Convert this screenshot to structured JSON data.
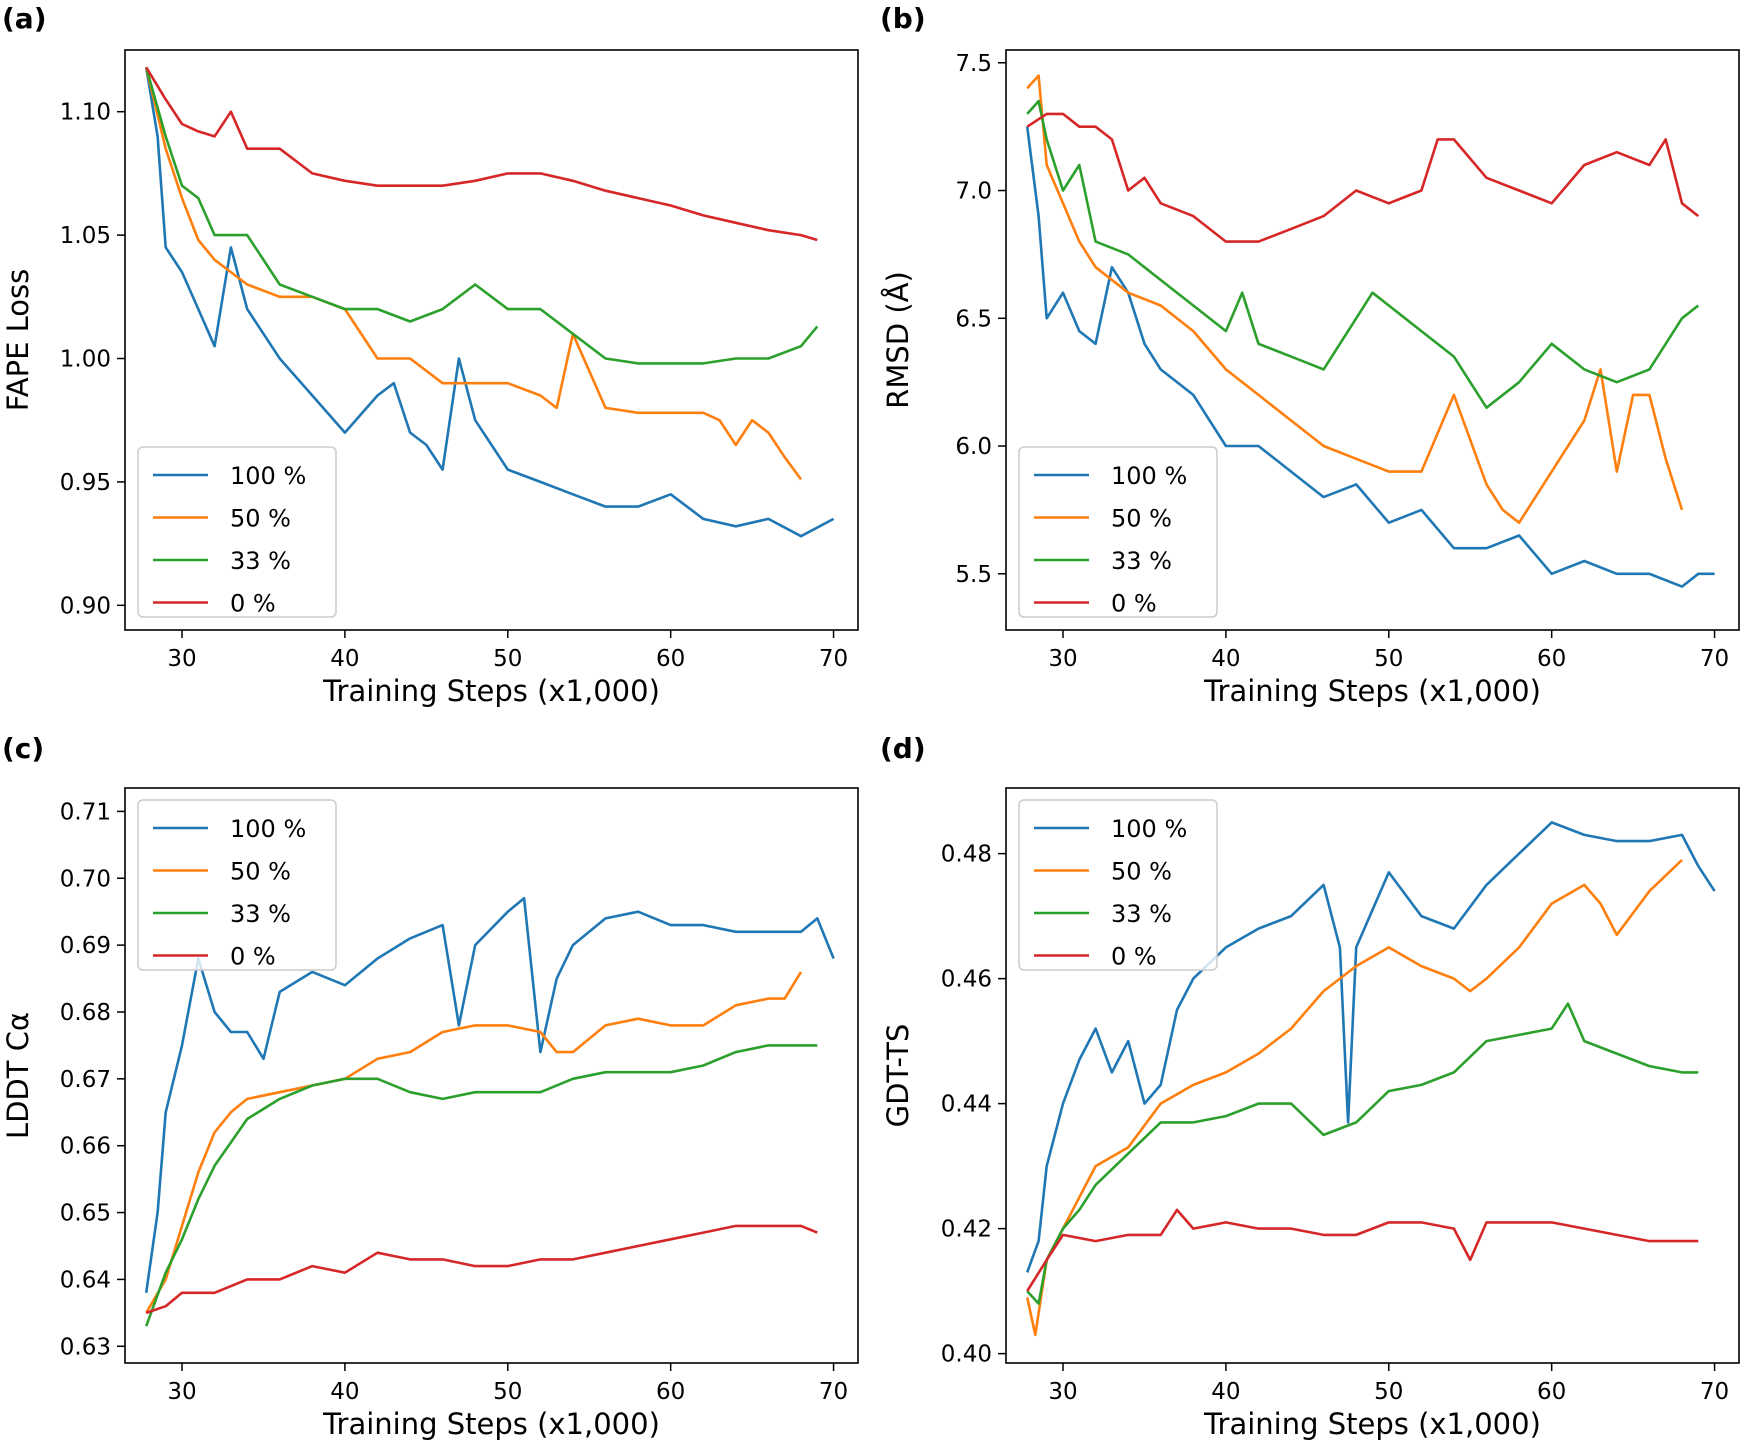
{
  "legend_series": [
    "100 %",
    "50 %",
    "33 %",
    "0 %"
  ],
  "colors": {
    "s100": "#1f77b4",
    "s50": "#ff7f0e",
    "s33": "#2ca02c",
    "s0": "#d62728"
  },
  "chart_data": [
    {
      "id": "a",
      "panel_label": "(a)",
      "type": "line",
      "xlabel": "Training Steps (x1,000)",
      "ylabel": "FAPE Loss",
      "xlim": [
        26.5,
        71.5
      ],
      "ylim": [
        0.89,
        1.125
      ],
      "xticks": [
        30,
        40,
        50,
        60,
        70
      ],
      "yticks": [
        0.9,
        0.95,
        1.0,
        1.05,
        1.1
      ],
      "ytick_labels": [
        "0.90",
        "0.95",
        "1.00",
        "1.05",
        "1.10"
      ],
      "legend": "lower-left",
      "series": [
        {
          "name": "100 %",
          "color": "#1f77b4",
          "x": [
            27.8,
            28.5,
            29,
            30,
            31,
            32,
            33,
            34,
            35,
            36,
            38,
            40,
            42,
            43,
            44,
            45,
            46,
            47,
            48,
            50,
            52,
            54,
            56,
            58,
            60,
            62,
            64,
            66,
            68,
            70
          ],
          "y": [
            1.118,
            1.09,
            1.045,
            1.035,
            1.02,
            1.005,
            1.045,
            1.02,
            1.01,
            1.0,
            0.985,
            0.97,
            0.985,
            0.99,
            0.97,
            0.965,
            0.955,
            1.0,
            0.975,
            0.955,
            0.95,
            0.945,
            0.94,
            0.94,
            0.945,
            0.935,
            0.932,
            0.935,
            0.928,
            0.935
          ]
        },
        {
          "name": "50 %",
          "color": "#ff7f0e",
          "x": [
            27.8,
            29,
            30,
            31,
            32,
            34,
            36,
            38,
            40,
            42,
            44,
            46,
            48,
            50,
            52,
            53,
            54,
            56,
            58,
            60,
            62,
            63,
            64,
            65,
            66,
            67,
            68
          ],
          "y": [
            1.118,
            1.085,
            1.065,
            1.048,
            1.04,
            1.03,
            1.025,
            1.025,
            1.02,
            1.0,
            1.0,
            0.99,
            0.99,
            0.99,
            0.985,
            0.98,
            1.01,
            0.98,
            0.978,
            0.978,
            0.978,
            0.975,
            0.965,
            0.975,
            0.97,
            0.96,
            0.951
          ]
        },
        {
          "name": "33 %",
          "color": "#2ca02c",
          "x": [
            27.8,
            29,
            30,
            31,
            32,
            34,
            36,
            38,
            40,
            42,
            44,
            46,
            48,
            50,
            52,
            54,
            56,
            58,
            60,
            62,
            64,
            66,
            68,
            69
          ],
          "y": [
            1.118,
            1.09,
            1.07,
            1.065,
            1.05,
            1.05,
            1.03,
            1.025,
            1.02,
            1.02,
            1.015,
            1.02,
            1.03,
            1.02,
            1.02,
            1.01,
            1.0,
            0.998,
            0.998,
            0.998,
            1.0,
            1.0,
            1.005,
            1.013
          ]
        },
        {
          "name": "0 %",
          "color": "#d62728",
          "x": [
            27.8,
            29,
            30,
            31,
            32,
            33,
            34,
            36,
            38,
            40,
            42,
            44,
            46,
            48,
            50,
            52,
            54,
            56,
            58,
            60,
            62,
            64,
            66,
            68,
            69
          ],
          "y": [
            1.118,
            1.105,
            1.095,
            1.092,
            1.09,
            1.1,
            1.085,
            1.085,
            1.075,
            1.072,
            1.07,
            1.07,
            1.07,
            1.072,
            1.075,
            1.075,
            1.072,
            1.068,
            1.065,
            1.062,
            1.058,
            1.055,
            1.052,
            1.05,
            1.048
          ]
        }
      ]
    },
    {
      "id": "b",
      "panel_label": "(b)",
      "type": "line",
      "xlabel": "Training Steps (x1,000)",
      "ylabel": "RMSD (Å)",
      "xlim": [
        26.5,
        71.5
      ],
      "ylim": [
        5.28,
        7.55
      ],
      "xticks": [
        30,
        40,
        50,
        60,
        70
      ],
      "yticks": [
        5.5,
        6.0,
        6.5,
        7.0,
        7.5
      ],
      "ytick_labels": [
        "5.5",
        "6.0",
        "6.5",
        "7.0",
        "7.5"
      ],
      "legend": "lower-left",
      "series": [
        {
          "name": "100 %",
          "color": "#1f77b4",
          "x": [
            27.8,
            28.5,
            29,
            30,
            31,
            32,
            33,
            34,
            35,
            36,
            38,
            40,
            42,
            44,
            46,
            48,
            50,
            52,
            54,
            56,
            58,
            60,
            62,
            64,
            66,
            68,
            69,
            70
          ],
          "y": [
            7.25,
            6.9,
            6.5,
            6.6,
            6.45,
            6.4,
            6.7,
            6.6,
            6.4,
            6.3,
            6.2,
            6.0,
            6.0,
            5.9,
            5.8,
            5.85,
            5.7,
            5.75,
            5.6,
            5.6,
            5.65,
            5.5,
            5.55,
            5.5,
            5.5,
            5.45,
            5.5,
            5.5
          ]
        },
        {
          "name": "50 %",
          "color": "#ff7f0e",
          "x": [
            27.8,
            28.5,
            29,
            30,
            31,
            32,
            34,
            36,
            38,
            40,
            42,
            44,
            46,
            48,
            50,
            52,
            54,
            56,
            57,
            58,
            60,
            62,
            63,
            64,
            65,
            66,
            67,
            68
          ],
          "y": [
            7.4,
            7.45,
            7.1,
            6.95,
            6.8,
            6.7,
            6.6,
            6.55,
            6.45,
            6.3,
            6.2,
            6.1,
            6.0,
            5.95,
            5.9,
            5.9,
            6.2,
            5.85,
            5.75,
            5.7,
            5.9,
            6.1,
            6.3,
            5.9,
            6.2,
            6.2,
            5.95,
            5.75
          ]
        },
        {
          "name": "33 %",
          "color": "#2ca02c",
          "x": [
            27.8,
            28.5,
            29,
            30,
            31,
            32,
            34,
            36,
            38,
            40,
            41,
            42,
            44,
            46,
            48,
            49,
            50,
            52,
            54,
            56,
            58,
            60,
            62,
            64,
            66,
            68,
            69
          ],
          "y": [
            7.3,
            7.35,
            7.2,
            7.0,
            7.1,
            6.8,
            6.75,
            6.65,
            6.55,
            6.45,
            6.6,
            6.4,
            6.35,
            6.3,
            6.5,
            6.6,
            6.55,
            6.45,
            6.35,
            6.15,
            6.25,
            6.4,
            6.3,
            6.25,
            6.3,
            6.5,
            6.55
          ]
        },
        {
          "name": "0 %",
          "color": "#d62728",
          "x": [
            27.8,
            29,
            30,
            31,
            32,
            33,
            34,
            35,
            36,
            38,
            40,
            42,
            44,
            46,
            48,
            50,
            52,
            53,
            54,
            56,
            58,
            60,
            62,
            64,
            66,
            67,
            68,
            69
          ],
          "y": [
            7.25,
            7.3,
            7.3,
            7.25,
            7.25,
            7.2,
            7.0,
            7.05,
            6.95,
            6.9,
            6.8,
            6.8,
            6.85,
            6.9,
            7.0,
            6.95,
            7.0,
            7.2,
            7.2,
            7.05,
            7.0,
            6.95,
            7.1,
            7.15,
            7.1,
            7.2,
            6.95,
            6.9
          ]
        }
      ]
    },
    {
      "id": "c",
      "panel_label": "(c)",
      "type": "line",
      "xlabel": "Training Steps (x1,000)",
      "ylabel": "LDDT Cα",
      "xlim": [
        26.5,
        71.5
      ],
      "ylim": [
        0.6275,
        0.7135
      ],
      "xticks": [
        30,
        40,
        50,
        60,
        70
      ],
      "yticks": [
        0.63,
        0.64,
        0.65,
        0.66,
        0.67,
        0.68,
        0.69,
        0.7,
        0.71
      ],
      "ytick_labels": [
        "0.63",
        "0.64",
        "0.65",
        "0.66",
        "0.67",
        "0.68",
        "0.69",
        "0.70",
        "0.71"
      ],
      "legend": "top-left",
      "series": [
        {
          "name": "100 %",
          "color": "#1f77b4",
          "x": [
            27.8,
            28.5,
            29,
            30,
            31,
            32,
            33,
            34,
            35,
            36,
            38,
            40,
            42,
            44,
            46,
            47,
            48,
            50,
            51,
            52,
            53,
            54,
            56,
            58,
            60,
            62,
            64,
            66,
            68,
            69,
            70
          ],
          "y": [
            0.638,
            0.65,
            0.665,
            0.675,
            0.688,
            0.68,
            0.677,
            0.677,
            0.673,
            0.683,
            0.686,
            0.684,
            0.688,
            0.691,
            0.693,
            0.678,
            0.69,
            0.695,
            0.697,
            0.674,
            0.685,
            0.69,
            0.694,
            0.695,
            0.693,
            0.693,
            0.692,
            0.692,
            0.692,
            0.694,
            0.688
          ]
        },
        {
          "name": "50 %",
          "color": "#ff7f0e",
          "x": [
            27.8,
            29,
            30,
            31,
            32,
            33,
            34,
            36,
            38,
            40,
            42,
            44,
            46,
            48,
            50,
            52,
            53,
            54,
            56,
            58,
            60,
            62,
            64,
            66,
            67,
            68
          ],
          "y": [
            0.635,
            0.64,
            0.648,
            0.656,
            0.662,
            0.665,
            0.667,
            0.668,
            0.669,
            0.67,
            0.673,
            0.674,
            0.677,
            0.678,
            0.678,
            0.677,
            0.674,
            0.674,
            0.678,
            0.679,
            0.678,
            0.678,
            0.681,
            0.682,
            0.682,
            0.686
          ]
        },
        {
          "name": "33 %",
          "color": "#2ca02c",
          "x": [
            27.8,
            29,
            30,
            31,
            32,
            34,
            36,
            38,
            40,
            42,
            44,
            46,
            48,
            50,
            52,
            54,
            56,
            58,
            60,
            62,
            64,
            66,
            68,
            69
          ],
          "y": [
            0.633,
            0.641,
            0.646,
            0.652,
            0.657,
            0.664,
            0.667,
            0.669,
            0.67,
            0.67,
            0.668,
            0.667,
            0.668,
            0.668,
            0.668,
            0.67,
            0.671,
            0.671,
            0.671,
            0.672,
            0.674,
            0.675,
            0.675,
            0.675
          ]
        },
        {
          "name": "0 %",
          "color": "#d62728",
          "x": [
            27.8,
            29,
            30,
            32,
            34,
            36,
            38,
            40,
            42,
            44,
            46,
            48,
            50,
            52,
            54,
            56,
            58,
            60,
            62,
            64,
            66,
            68,
            69
          ],
          "y": [
            0.635,
            0.636,
            0.638,
            0.638,
            0.64,
            0.64,
            0.642,
            0.641,
            0.644,
            0.643,
            0.643,
            0.642,
            0.642,
            0.643,
            0.643,
            0.644,
            0.645,
            0.646,
            0.647,
            0.648,
            0.648,
            0.648,
            0.647
          ]
        }
      ]
    },
    {
      "id": "d",
      "panel_label": "(d)",
      "type": "line",
      "xlabel": "Training Steps (x1,000)",
      "ylabel": "GDT-TS",
      "xlim": [
        26.5,
        71.5
      ],
      "ylim": [
        0.3985,
        0.4905
      ],
      "xticks": [
        30,
        40,
        50,
        60,
        70
      ],
      "yticks": [
        0.4,
        0.42,
        0.44,
        0.46,
        0.48
      ],
      "ytick_labels": [
        "0.40",
        "0.42",
        "0.44",
        "0.46",
        "0.48"
      ],
      "legend": "top-left",
      "series": [
        {
          "name": "100 %",
          "color": "#1f77b4",
          "x": [
            27.8,
            28.5,
            29,
            30,
            31,
            32,
            33,
            34,
            35,
            36,
            37,
            38,
            40,
            42,
            44,
            46,
            47,
            47.5,
            48,
            50,
            52,
            54,
            56,
            58,
            60,
            62,
            64,
            66,
            68,
            69,
            70
          ],
          "y": [
            0.413,
            0.418,
            0.43,
            0.44,
            0.447,
            0.452,
            0.445,
            0.45,
            0.44,
            0.443,
            0.455,
            0.46,
            0.465,
            0.468,
            0.47,
            0.475,
            0.465,
            0.437,
            0.465,
            0.477,
            0.47,
            0.468,
            0.475,
            0.48,
            0.485,
            0.483,
            0.482,
            0.482,
            0.483,
            0.478,
            0.474
          ]
        },
        {
          "name": "50 %",
          "color": "#ff7f0e",
          "x": [
            27.8,
            28.3,
            29,
            30,
            31,
            32,
            34,
            36,
            38,
            40,
            42,
            44,
            46,
            48,
            50,
            52,
            54,
            55,
            56,
            58,
            60,
            62,
            63,
            64,
            66,
            68
          ],
          "y": [
            0.409,
            0.403,
            0.415,
            0.42,
            0.425,
            0.43,
            0.433,
            0.44,
            0.443,
            0.445,
            0.448,
            0.452,
            0.458,
            0.462,
            0.465,
            0.462,
            0.46,
            0.458,
            0.46,
            0.465,
            0.472,
            0.475,
            0.472,
            0.467,
            0.474,
            0.479
          ]
        },
        {
          "name": "33 %",
          "color": "#2ca02c",
          "x": [
            27.8,
            28.5,
            29,
            30,
            31,
            32,
            34,
            36,
            38,
            40,
            42,
            44,
            46,
            48,
            50,
            52,
            54,
            56,
            58,
            60,
            61,
            62,
            64,
            66,
            68,
            69
          ],
          "y": [
            0.41,
            0.408,
            0.415,
            0.42,
            0.423,
            0.427,
            0.432,
            0.437,
            0.437,
            0.438,
            0.44,
            0.44,
            0.435,
            0.437,
            0.442,
            0.443,
            0.445,
            0.45,
            0.451,
            0.452,
            0.456,
            0.45,
            0.448,
            0.446,
            0.445,
            0.445
          ]
        },
        {
          "name": "0 %",
          "color": "#d62728",
          "x": [
            27.8,
            29,
            30,
            32,
            34,
            36,
            37,
            38,
            40,
            42,
            44,
            46,
            48,
            50,
            52,
            54,
            55,
            56,
            58,
            60,
            62,
            64,
            66,
            68,
            69
          ],
          "y": [
            0.41,
            0.415,
            0.419,
            0.418,
            0.419,
            0.419,
            0.423,
            0.42,
            0.421,
            0.42,
            0.42,
            0.419,
            0.419,
            0.421,
            0.421,
            0.42,
            0.415,
            0.421,
            0.421,
            0.421,
            0.42,
            0.419,
            0.418,
            0.418,
            0.418
          ]
        }
      ]
    }
  ]
}
